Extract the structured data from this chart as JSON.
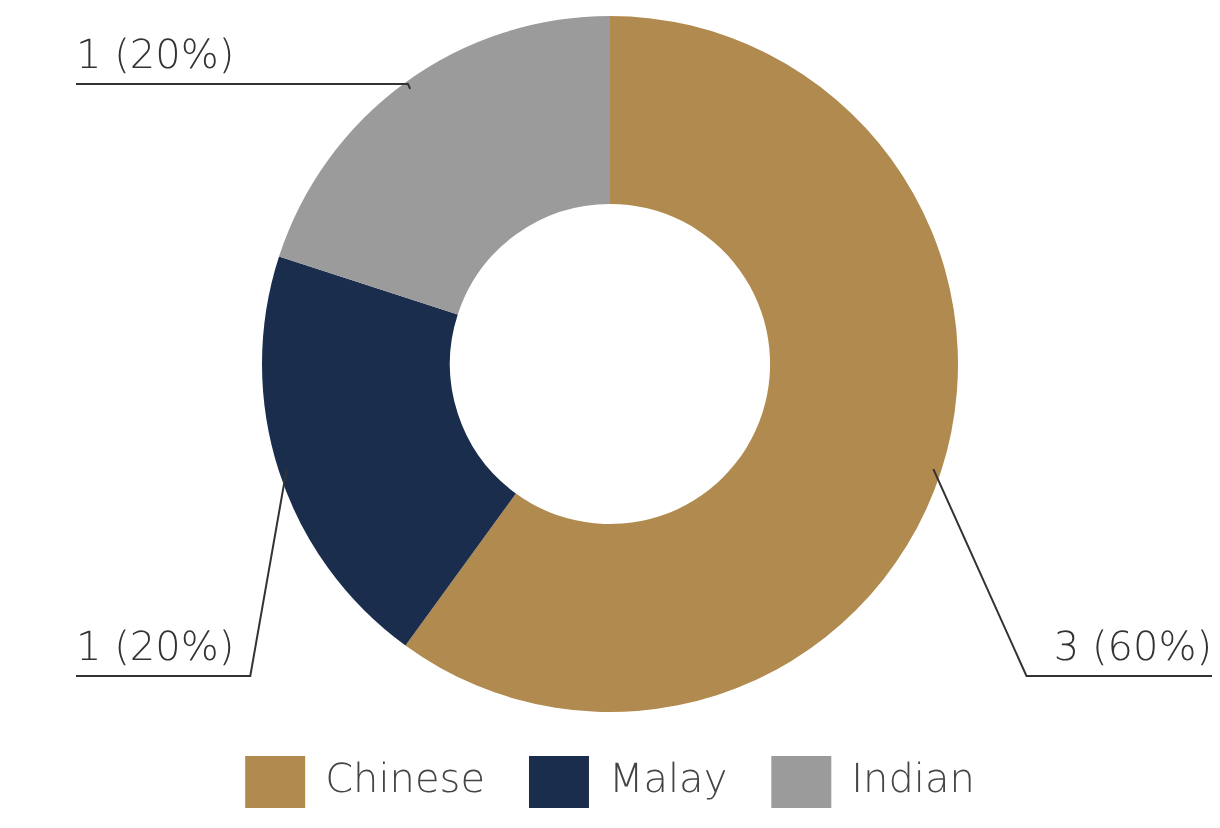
{
  "chart_data": {
    "type": "donut",
    "categories": [
      "Chinese",
      "Malay",
      "Indian"
    ],
    "values": [
      3,
      1,
      1
    ],
    "colors": [
      "#b08a4e",
      "#1a2d4d",
      "#9b9b9b"
    ],
    "value_labels": [
      "3 (60%)",
      "1 (20%)",
      "1 (20%)"
    ],
    "legend": "bottom"
  }
}
